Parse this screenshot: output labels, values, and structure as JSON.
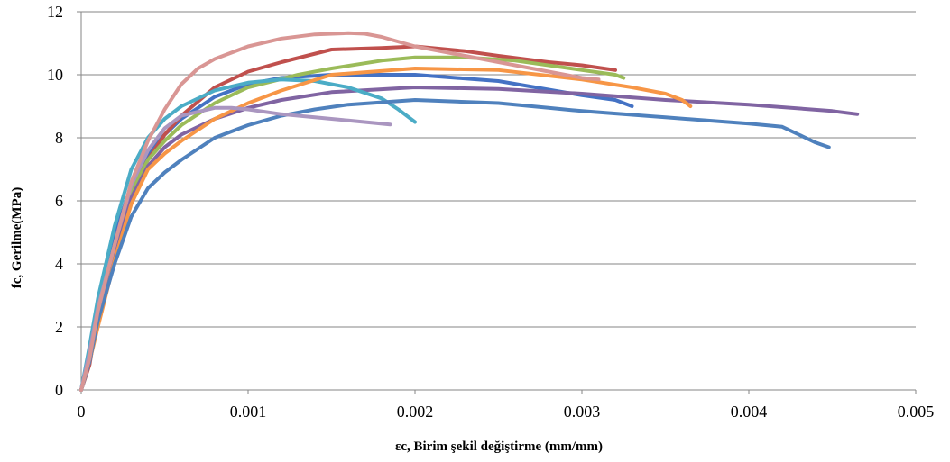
{
  "chart_data": {
    "type": "line",
    "title": "",
    "xlabel": "εc, Birim şekil değiştirme (mm/mm)",
    "ylabel": "fc, Gerilme(MPa)",
    "xlim": [
      0,
      0.005
    ],
    "ylim": [
      0,
      12
    ],
    "x_ticks": [
      "0",
      "0.001",
      "0.002",
      "0.003",
      "0.004",
      "0.005"
    ],
    "y_ticks": [
      "0",
      "2",
      "4",
      "6",
      "8",
      "10",
      "12"
    ],
    "grid": "horizontal",
    "legend": "none",
    "series": [
      {
        "color": "#4472C4",
        "points": [
          [
            0,
            0
          ],
          [
            5e-05,
            1.3
          ],
          [
            0.0001,
            2.7
          ],
          [
            0.0002,
            4.9
          ],
          [
            0.0003,
            6.5
          ],
          [
            0.0004,
            7.5
          ],
          [
            0.0005,
            8.1
          ],
          [
            0.0006,
            8.6
          ],
          [
            0.0008,
            9.3
          ],
          [
            0.001,
            9.7
          ],
          [
            0.0012,
            9.9
          ],
          [
            0.0015,
            10.0
          ],
          [
            0.002,
            10.0
          ],
          [
            0.0025,
            9.8
          ],
          [
            0.003,
            9.35
          ],
          [
            0.0032,
            9.2
          ],
          [
            0.0033,
            9.0
          ]
        ]
      },
      {
        "color": "#C0504D",
        "points": [
          [
            0,
            0
          ],
          [
            5e-05,
            0.8
          ],
          [
            0.0001,
            2.4
          ],
          [
            0.0002,
            4.5
          ],
          [
            0.0003,
            6.3
          ],
          [
            0.0004,
            7.3
          ],
          [
            0.0005,
            8.1
          ],
          [
            0.0006,
            8.7
          ],
          [
            0.0008,
            9.6
          ],
          [
            0.001,
            10.1
          ],
          [
            0.0012,
            10.4
          ],
          [
            0.0015,
            10.8
          ],
          [
            0.0018,
            10.85
          ],
          [
            0.002,
            10.9
          ],
          [
            0.0023,
            10.75
          ],
          [
            0.0025,
            10.6
          ],
          [
            0.0028,
            10.4
          ],
          [
            0.003,
            10.3
          ],
          [
            0.0032,
            10.15
          ]
        ]
      },
      {
        "color": "#9BBB59",
        "points": [
          [
            0,
            0
          ],
          [
            5e-05,
            1.0
          ],
          [
            0.0001,
            2.5
          ],
          [
            0.0002,
            4.6
          ],
          [
            0.0003,
            6.3
          ],
          [
            0.0004,
            7.3
          ],
          [
            0.0005,
            7.9
          ],
          [
            0.0006,
            8.4
          ],
          [
            0.0008,
            9.1
          ],
          [
            0.001,
            9.6
          ],
          [
            0.0013,
            10.0
          ],
          [
            0.0015,
            10.2
          ],
          [
            0.0018,
            10.45
          ],
          [
            0.002,
            10.55
          ],
          [
            0.0023,
            10.55
          ],
          [
            0.0026,
            10.45
          ],
          [
            0.003,
            10.15
          ],
          [
            0.0032,
            10.0
          ],
          [
            0.00325,
            9.9
          ]
        ]
      },
      {
        "color": "#8064A2",
        "points": [
          [
            0,
            0
          ],
          [
            5e-05,
            1.0
          ],
          [
            0.0001,
            2.4
          ],
          [
            0.0002,
            4.5
          ],
          [
            0.0003,
            6.1
          ],
          [
            0.0004,
            7.1
          ],
          [
            0.0005,
            7.7
          ],
          [
            0.0006,
            8.1
          ],
          [
            0.0008,
            8.6
          ],
          [
            0.001,
            8.95
          ],
          [
            0.0012,
            9.2
          ],
          [
            0.0015,
            9.45
          ],
          [
            0.002,
            9.6
          ],
          [
            0.0025,
            9.55
          ],
          [
            0.003,
            9.4
          ],
          [
            0.0035,
            9.2
          ],
          [
            0.004,
            9.05
          ],
          [
            0.0045,
            8.85
          ],
          [
            0.00465,
            8.75
          ]
        ]
      },
      {
        "color": "#4BACC6",
        "points": [
          [
            0,
            0
          ],
          [
            5e-05,
            1.4
          ],
          [
            0.0001,
            2.9
          ],
          [
            0.0002,
            5.2
          ],
          [
            0.0003,
            7.0
          ],
          [
            0.0004,
            8.0
          ],
          [
            0.0005,
            8.6
          ],
          [
            0.0006,
            9.0
          ],
          [
            0.0008,
            9.5
          ],
          [
            0.001,
            9.75
          ],
          [
            0.0012,
            9.85
          ],
          [
            0.0014,
            9.8
          ],
          [
            0.0016,
            9.6
          ],
          [
            0.0018,
            9.25
          ],
          [
            0.0019,
            8.9
          ],
          [
            0.002,
            8.5
          ]
        ]
      },
      {
        "color": "#F79646",
        "points": [
          [
            0,
            0
          ],
          [
            5e-05,
            0.9
          ],
          [
            0.0001,
            2.0
          ],
          [
            0.0002,
            4.1
          ],
          [
            0.0003,
            5.9
          ],
          [
            0.0004,
            7.0
          ],
          [
            0.0005,
            7.5
          ],
          [
            0.0006,
            7.9
          ],
          [
            0.0008,
            8.6
          ],
          [
            0.001,
            9.1
          ],
          [
            0.0012,
            9.5
          ],
          [
            0.0015,
            10.0
          ],
          [
            0.002,
            10.2
          ],
          [
            0.0025,
            10.15
          ],
          [
            0.003,
            9.85
          ],
          [
            0.0033,
            9.6
          ],
          [
            0.0035,
            9.4
          ],
          [
            0.0036,
            9.2
          ],
          [
            0.00365,
            9.0
          ]
        ]
      },
      {
        "color": "#4F81BD",
        "points": [
          [
            0,
            0
          ],
          [
            5e-05,
            0.9
          ],
          [
            0.0001,
            2.2
          ],
          [
            0.0002,
            4.0
          ],
          [
            0.0003,
            5.5
          ],
          [
            0.0004,
            6.4
          ],
          [
            0.0005,
            6.9
          ],
          [
            0.0006,
            7.3
          ],
          [
            0.0008,
            8.0
          ],
          [
            0.001,
            8.4
          ],
          [
            0.0012,
            8.7
          ],
          [
            0.0014,
            8.9
          ],
          [
            0.0016,
            9.05
          ],
          [
            0.002,
            9.2
          ],
          [
            0.0025,
            9.1
          ],
          [
            0.0028,
            8.95
          ],
          [
            0.003,
            8.85
          ],
          [
            0.0035,
            8.65
          ],
          [
            0.004,
            8.45
          ],
          [
            0.0042,
            8.35
          ],
          [
            0.0043,
            8.1
          ],
          [
            0.0044,
            7.85
          ],
          [
            0.00448,
            7.7
          ]
        ]
      },
      {
        "color": "#AA96C0",
        "points": [
          [
            0,
            0
          ],
          [
            5e-05,
            1.2
          ],
          [
            0.0001,
            2.6
          ],
          [
            0.0002,
            4.6
          ],
          [
            0.0003,
            6.5
          ],
          [
            0.0004,
            7.6
          ],
          [
            0.0005,
            8.3
          ],
          [
            0.0006,
            8.7
          ],
          [
            0.0008,
            8.95
          ],
          [
            0.0009,
            8.95
          ],
          [
            0.001,
            8.9
          ],
          [
            0.0012,
            8.75
          ],
          [
            0.0014,
            8.65
          ],
          [
            0.0016,
            8.55
          ],
          [
            0.00185,
            8.42
          ]
        ]
      },
      {
        "color": "#D99694",
        "points": [
          [
            0,
            0
          ],
          [
            5e-05,
            1.0
          ],
          [
            0.0001,
            2.5
          ],
          [
            0.0002,
            4.6
          ],
          [
            0.0003,
            6.6
          ],
          [
            0.0004,
            7.9
          ],
          [
            0.0005,
            8.9
          ],
          [
            0.0006,
            9.7
          ],
          [
            0.0007,
            10.2
          ],
          [
            0.0008,
            10.5
          ],
          [
            0.001,
            10.9
          ],
          [
            0.0012,
            11.15
          ],
          [
            0.0014,
            11.28
          ],
          [
            0.0016,
            11.32
          ],
          [
            0.0017,
            11.3
          ],
          [
            0.0018,
            11.2
          ],
          [
            0.002,
            10.9
          ],
          [
            0.0022,
            10.7
          ],
          [
            0.0025,
            10.4
          ],
          [
            0.0028,
            10.1
          ],
          [
            0.003,
            9.9
          ],
          [
            0.0031,
            9.85
          ]
        ]
      }
    ]
  }
}
